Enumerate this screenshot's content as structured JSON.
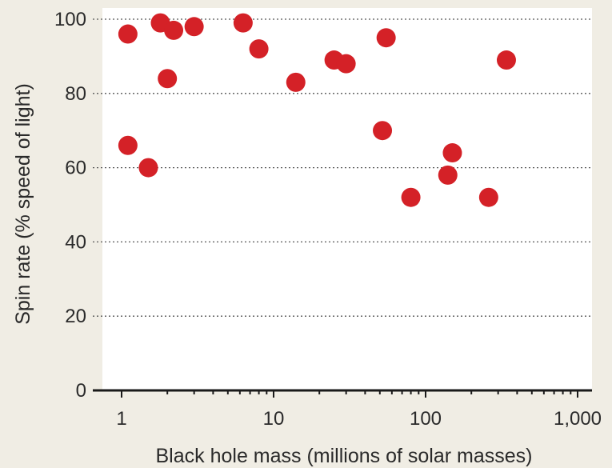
{
  "chart_data": {
    "type": "scatter",
    "title": "",
    "xlabel": "Black hole mass (millions of solar masses)",
    "ylabel": "Spin rate (% speed of light)",
    "x_scale": "log",
    "xlim": [
      0.8,
      1100
    ],
    "ylim": [
      0,
      100
    ],
    "x_ticks": [
      1,
      10,
      100,
      1000
    ],
    "x_tick_labels": [
      "1",
      "10",
      "100",
      "1,000"
    ],
    "y_ticks": [
      0,
      20,
      40,
      60,
      80,
      100
    ],
    "y_tick_labels": [
      "0",
      "20",
      "40",
      "60",
      "80",
      "100"
    ],
    "grid": "horizontal dotted",
    "colors": {
      "marker": "#d42127",
      "plot_bg": "#ffffff",
      "page_bg": "#f0ede4"
    },
    "series": [
      {
        "points": [
          {
            "x": 1.1,
            "y": 96
          },
          {
            "x": 1.1,
            "y": 66
          },
          {
            "x": 1.5,
            "y": 60
          },
          {
            "x": 1.8,
            "y": 99
          },
          {
            "x": 2.0,
            "y": 84
          },
          {
            "x": 2.2,
            "y": 97
          },
          {
            "x": 3.0,
            "y": 98
          },
          {
            "x": 6.3,
            "y": 99
          },
          {
            "x": 8.0,
            "y": 92
          },
          {
            "x": 14,
            "y": 83
          },
          {
            "x": 25,
            "y": 89
          },
          {
            "x": 30,
            "y": 88
          },
          {
            "x": 52,
            "y": 70
          },
          {
            "x": 55,
            "y": 95
          },
          {
            "x": 80,
            "y": 52
          },
          {
            "x": 140,
            "y": 58
          },
          {
            "x": 150,
            "y": 64
          },
          {
            "x": 260,
            "y": 52
          },
          {
            "x": 340,
            "y": 89
          }
        ]
      }
    ]
  }
}
